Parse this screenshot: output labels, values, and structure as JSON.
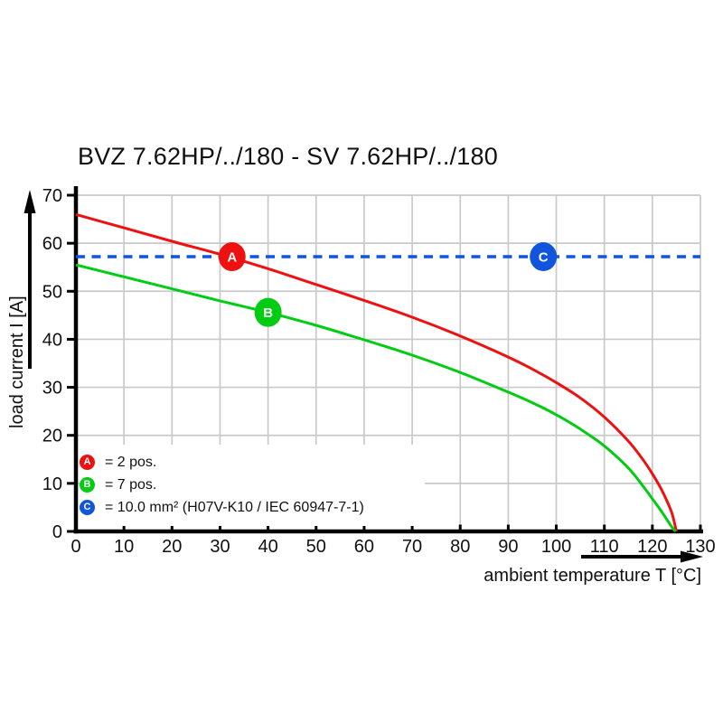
{
  "page": {
    "title": "BVZ 7.62HP/../180 - SV 7.62HP/../180"
  },
  "colors": {
    "red": "#ee1111",
    "green": "#00cc11",
    "blue": "#1155dd",
    "grid": "#c9c9c9",
    "axis": "#000000"
  },
  "chart_data": {
    "type": "line",
    "title": "BVZ 7.62HP/../180 - SV 7.62HP/../180",
    "xlabel": "ambient temperature T [°C]",
    "ylabel": "load current I [A]",
    "xlim": [
      0,
      130
    ],
    "ylim": [
      0,
      70
    ],
    "x_ticks": [
      0,
      10,
      20,
      30,
      40,
      50,
      60,
      70,
      80,
      90,
      100,
      110,
      120,
      130
    ],
    "y_ticks": [
      0,
      10,
      20,
      30,
      40,
      50,
      60,
      70
    ],
    "grid": true,
    "legend_position": "lower-left-inside",
    "series": [
      {
        "id": "A",
        "name": "2 pos.",
        "color_key": "red",
        "style": "solid",
        "points": [
          [
            0,
            66
          ],
          [
            10,
            63.2
          ],
          [
            20,
            60.4
          ],
          [
            30,
            57.7
          ],
          [
            40,
            54.7
          ],
          [
            50,
            51.4
          ],
          [
            60,
            48.1
          ],
          [
            70,
            44.6
          ],
          [
            80,
            40.7
          ],
          [
            90,
            36.3
          ],
          [
            95,
            33.8
          ],
          [
            100,
            31.0
          ],
          [
            105,
            27.8
          ],
          [
            110,
            23.8
          ],
          [
            115,
            18.8
          ],
          [
            118,
            15.0
          ],
          [
            120,
            12.0
          ],
          [
            122,
            8.5
          ],
          [
            124,
            4.0
          ],
          [
            125,
            0
          ]
        ]
      },
      {
        "id": "B",
        "name": "7 pos.",
        "color_key": "green",
        "style": "solid",
        "points": [
          [
            0,
            55.5
          ],
          [
            10,
            53.0
          ],
          [
            20,
            50.5
          ],
          [
            30,
            48.0
          ],
          [
            40,
            45.6
          ],
          [
            50,
            42.9
          ],
          [
            60,
            39.9
          ],
          [
            70,
            36.7
          ],
          [
            80,
            33.1
          ],
          [
            90,
            29.0
          ],
          [
            95,
            26.8
          ],
          [
            100,
            24.3
          ],
          [
            105,
            21.3
          ],
          [
            110,
            17.8
          ],
          [
            115,
            13.2
          ],
          [
            118,
            9.5
          ],
          [
            120,
            6.8
          ],
          [
            122,
            4.0
          ],
          [
            124,
            1.0
          ],
          [
            124.8,
            0
          ]
        ]
      },
      {
        "id": "C",
        "name": "10.0 mm² (H07V-K10 / IEC 60947-7-1)",
        "color_key": "blue",
        "style": "dashed",
        "points": [
          [
            0,
            57.2
          ],
          [
            130,
            57.2
          ]
        ]
      }
    ],
    "markers": [
      {
        "label": "A",
        "x": 32.5,
        "y": 57.2,
        "color_key": "red"
      },
      {
        "label": "B",
        "x": 40,
        "y": 45.6,
        "color_key": "green"
      },
      {
        "label": "C",
        "x": 97.3,
        "y": 57.2,
        "color_key": "blue"
      }
    ]
  },
  "legend": {
    "rows": [
      {
        "letter": "A",
        "color_key": "red",
        "text": "= 2 pos."
      },
      {
        "letter": "B",
        "color_key": "green",
        "text": "= 7 pos."
      },
      {
        "letter": "C",
        "color_key": "blue",
        "text": "= 10.0 mm² (H07V-K10 / IEC 60947-7-1)"
      }
    ]
  }
}
